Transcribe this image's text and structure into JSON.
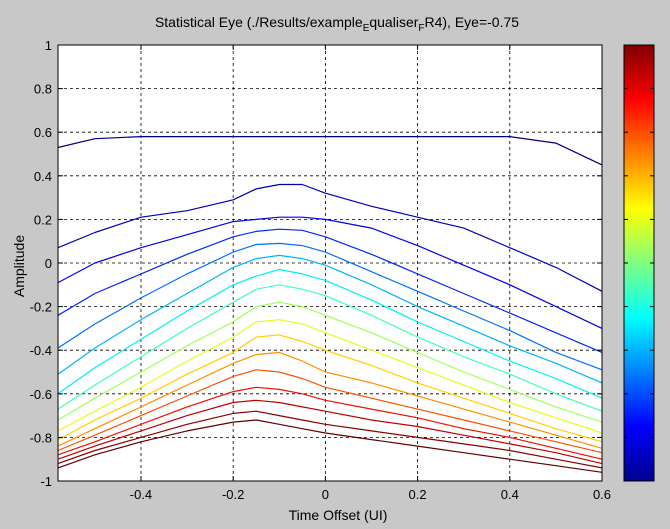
{
  "chart_data": {
    "type": "line",
    "title": "Statistical Eye (./Results/example",
    "title_sub1": "E",
    "title_mid": "qualiser",
    "title_sub2": "F",
    "title_end": "R4), Eye=-0.75",
    "xlabel": "Time Offset (UI)",
    "ylabel": "Amplitude",
    "xlim": [
      -0.58,
      0.6
    ],
    "ylim": [
      -1,
      1
    ],
    "xticks": [
      -0.4,
      -0.2,
      0,
      0.2,
      0.4,
      0.6
    ],
    "xtick_labels": [
      "-0.4",
      "-0.2",
      "0",
      "0.2",
      "0.4",
      "0.6"
    ],
    "yticks": [
      -1,
      -0.8,
      -0.6,
      -0.4,
      -0.2,
      0,
      0.2,
      0.4,
      0.6,
      0.8,
      1
    ],
    "ytick_labels": [
      "-1",
      "-0.8",
      "-0.6",
      "-0.4",
      "-0.2",
      "0",
      "0.2",
      "0.4",
      "0.6",
      "0.8",
      "1"
    ],
    "grid": true,
    "colorbar": true,
    "colormap": "jet",
    "x": [
      -0.58,
      -0.5,
      -0.4,
      -0.3,
      -0.2,
      -0.15,
      -0.1,
      -0.05,
      0,
      0.1,
      0.2,
      0.3,
      0.4,
      0.5,
      0.6
    ],
    "series": [
      {
        "color": "#000080",
        "values": [
          0.53,
          0.57,
          0.58,
          0.58,
          0.58,
          0.58,
          0.58,
          0.58,
          0.58,
          0.58,
          0.58,
          0.58,
          0.58,
          0.55,
          0.45
        ]
      },
      {
        "color": "#0000b8",
        "values": [
          0.07,
          0.14,
          0.21,
          0.24,
          0.29,
          0.34,
          0.36,
          0.36,
          0.32,
          0.26,
          0.21,
          0.16,
          0.07,
          -0.02,
          -0.13
        ]
      },
      {
        "color": "#0000f0",
        "values": [
          -0.09,
          0.0,
          0.07,
          0.13,
          0.19,
          0.2,
          0.21,
          0.21,
          0.2,
          0.16,
          0.08,
          -0.01,
          -0.1,
          -0.2,
          -0.3
        ]
      },
      {
        "color": "#0028ff",
        "values": [
          -0.24,
          -0.14,
          -0.05,
          0.04,
          0.12,
          0.145,
          0.155,
          0.15,
          0.12,
          0.04,
          -0.05,
          -0.14,
          -0.23,
          -0.32,
          -0.41
        ]
      },
      {
        "color": "#0070ff",
        "values": [
          -0.39,
          -0.28,
          -0.16,
          -0.05,
          0.05,
          0.085,
          0.09,
          0.08,
          0.05,
          -0.04,
          -0.13,
          -0.22,
          -0.31,
          -0.41,
          -0.49
        ]
      },
      {
        "color": "#00b4ff",
        "values": [
          -0.51,
          -0.39,
          -0.26,
          -0.14,
          -0.02,
          0.02,
          0.035,
          0.02,
          -0.01,
          -0.1,
          -0.2,
          -0.29,
          -0.38,
          -0.46,
          -0.55
        ]
      },
      {
        "color": "#00f0f0",
        "values": [
          -0.6,
          -0.48,
          -0.35,
          -0.22,
          -0.1,
          -0.06,
          -0.03,
          -0.05,
          -0.08,
          -0.17,
          -0.27,
          -0.36,
          -0.45,
          -0.53,
          -0.62
        ]
      },
      {
        "color": "#40ffb8",
        "values": [
          -0.67,
          -0.56,
          -0.43,
          -0.3,
          -0.18,
          -0.12,
          -0.1,
          -0.12,
          -0.15,
          -0.24,
          -0.34,
          -0.43,
          -0.51,
          -0.6,
          -0.68
        ]
      },
      {
        "color": "#a0ff60",
        "values": [
          -0.72,
          -0.62,
          -0.5,
          -0.38,
          -0.27,
          -0.2,
          -0.18,
          -0.2,
          -0.24,
          -0.32,
          -0.41,
          -0.5,
          -0.58,
          -0.66,
          -0.73
        ]
      },
      {
        "color": "#e0ff20",
        "values": [
          -0.77,
          -0.68,
          -0.57,
          -0.45,
          -0.34,
          -0.27,
          -0.26,
          -0.28,
          -0.32,
          -0.4,
          -0.48,
          -0.56,
          -0.64,
          -0.71,
          -0.78
        ]
      },
      {
        "color": "#ffd000",
        "values": [
          -0.81,
          -0.72,
          -0.62,
          -0.51,
          -0.41,
          -0.34,
          -0.33,
          -0.36,
          -0.4,
          -0.47,
          -0.55,
          -0.62,
          -0.69,
          -0.76,
          -0.82
        ]
      },
      {
        "color": "#ff9000",
        "values": [
          -0.84,
          -0.76,
          -0.66,
          -0.56,
          -0.46,
          -0.42,
          -0.41,
          -0.45,
          -0.5,
          -0.55,
          -0.61,
          -0.67,
          -0.73,
          -0.79,
          -0.85
        ]
      },
      {
        "color": "#ff5000",
        "values": [
          -0.86,
          -0.79,
          -0.7,
          -0.61,
          -0.52,
          -0.49,
          -0.5,
          -0.53,
          -0.57,
          -0.62,
          -0.67,
          -0.72,
          -0.77,
          -0.82,
          -0.87
        ]
      },
      {
        "color": "#f01000",
        "values": [
          -0.88,
          -0.82,
          -0.74,
          -0.66,
          -0.59,
          -0.57,
          -0.58,
          -0.6,
          -0.63,
          -0.67,
          -0.71,
          -0.76,
          -0.8,
          -0.85,
          -0.9
        ]
      },
      {
        "color": "#c00000",
        "values": [
          -0.9,
          -0.84,
          -0.77,
          -0.7,
          -0.64,
          -0.63,
          -0.64,
          -0.66,
          -0.68,
          -0.72,
          -0.75,
          -0.79,
          -0.83,
          -0.87,
          -0.92
        ]
      },
      {
        "color": "#8a0000",
        "values": [
          -0.92,
          -0.86,
          -0.8,
          -0.74,
          -0.69,
          -0.68,
          -0.7,
          -0.72,
          -0.74,
          -0.77,
          -0.8,
          -0.83,
          -0.86,
          -0.9,
          -0.94
        ]
      },
      {
        "color": "#600000",
        "values": [
          -0.94,
          -0.88,
          -0.82,
          -0.77,
          -0.73,
          -0.72,
          -0.74,
          -0.76,
          -0.78,
          -0.81,
          -0.84,
          -0.87,
          -0.9,
          -0.93,
          -0.96
        ]
      }
    ],
    "colorbar_stops": [
      "#00008f",
      "#0000ff",
      "#0080ff",
      "#00ffff",
      "#80ff80",
      "#ffff00",
      "#ff8000",
      "#ff0000",
      "#800000"
    ]
  }
}
